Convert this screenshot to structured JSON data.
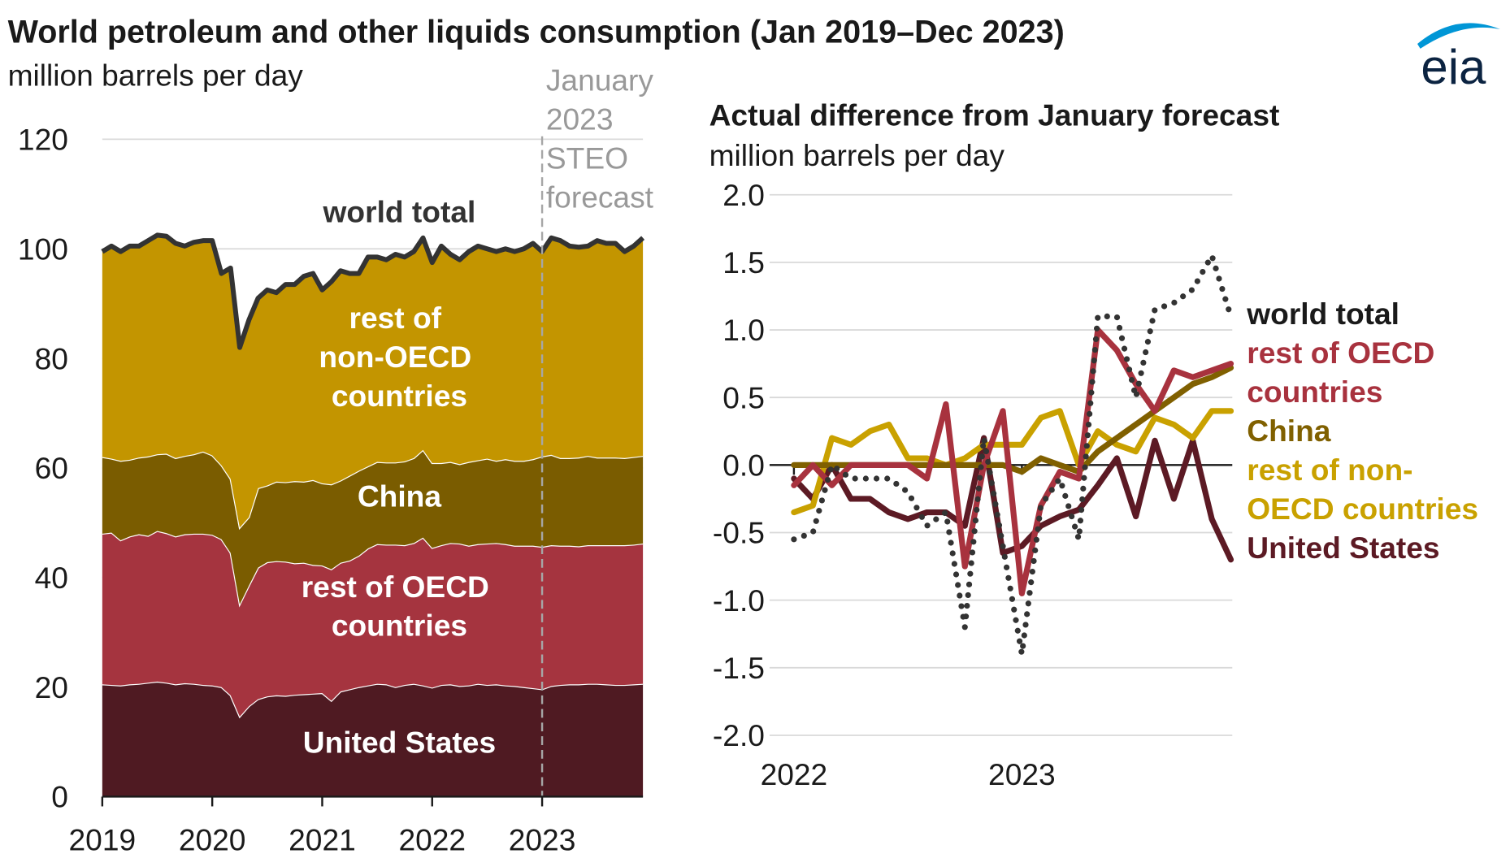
{
  "title": "World petroleum and other liquids consumption (Jan 2019–Dec 2023)",
  "subtitle": "million barrels per day",
  "logo": "eia",
  "chart_data": [
    {
      "type": "stacked_area",
      "categories": [
        "2019",
        null,
        null,
        null,
        null,
        null,
        null,
        null,
        null,
        null,
        null,
        null,
        "2020",
        null,
        null,
        null,
        null,
        null,
        null,
        null,
        null,
        null,
        null,
        null,
        "2021",
        null,
        null,
        null,
        null,
        null,
        null,
        null,
        null,
        null,
        null,
        null,
        "2022",
        null,
        null,
        null,
        null,
        null,
        null,
        null,
        null,
        null,
        null,
        null,
        "2023",
        null,
        null,
        null,
        null,
        null,
        null,
        null,
        null,
        null,
        null,
        null
      ],
      "ylim": [
        0,
        120
      ],
      "yticks": [
        0,
        20,
        40,
        60,
        80,
        100,
        120
      ],
      "grid": true,
      "series": [
        {
          "name": "United States",
          "color": "#4f1a22",
          "values": [
            20.5,
            20.4,
            20.3,
            20.5,
            20.6,
            20.8,
            21.0,
            20.8,
            20.5,
            20.7,
            20.6,
            20.4,
            20.3,
            20.0,
            18.5,
            14.6,
            16.5,
            17.8,
            18.3,
            18.5,
            18.4,
            18.6,
            18.7,
            18.8,
            18.9,
            17.5,
            19.2,
            19.6,
            20.0,
            20.3,
            20.6,
            20.5,
            20.0,
            20.4,
            20.6,
            20.3,
            19.9,
            20.4,
            20.5,
            20.2,
            20.3,
            20.6,
            20.4,
            20.5,
            20.3,
            20.2,
            20.0,
            19.8,
            19.6,
            20.2,
            20.4,
            20.5,
            20.5,
            20.6,
            20.6,
            20.5,
            20.4,
            20.4,
            20.5,
            20.6
          ]
        },
        {
          "name": "rest of OECD countries",
          "color": "#a5343f",
          "values": [
            27.5,
            27.8,
            26.5,
            27.0,
            27.3,
            26.8,
            27.5,
            27.3,
            27.0,
            27.2,
            27.4,
            27.6,
            27.5,
            27.0,
            26.0,
            20.5,
            22.0,
            24.0,
            24.5,
            24.5,
            24.5,
            24.0,
            24.0,
            23.5,
            23.3,
            24.0,
            23.5,
            23.5,
            24.0,
            25.0,
            25.5,
            25.5,
            26.0,
            25.5,
            25.7,
            27.0,
            25.5,
            25.5,
            25.8,
            26.0,
            25.5,
            25.5,
            25.8,
            25.8,
            25.8,
            25.6,
            25.8,
            26.0,
            26.0,
            25.7,
            25.4,
            25.3,
            25.2,
            25.3,
            25.3,
            25.4,
            25.5,
            25.5,
            25.5,
            25.6
          ]
        },
        {
          "name": "China",
          "color": "#7a5c00",
          "values": [
            14.0,
            13.5,
            14.5,
            14.0,
            14.0,
            14.5,
            14.0,
            14.5,
            14.3,
            14.3,
            14.5,
            15.0,
            14.5,
            13.5,
            13.5,
            14.0,
            12.5,
            14.5,
            14.0,
            14.5,
            14.5,
            15.0,
            14.8,
            15.5,
            15.0,
            15.5,
            15.0,
            15.5,
            15.5,
            15.0,
            15.0,
            15.0,
            15.0,
            15.3,
            15.5,
            16.0,
            15.5,
            15.0,
            14.8,
            14.5,
            15.3,
            15.3,
            15.5,
            15.0,
            15.5,
            15.5,
            15.5,
            15.8,
            16.5,
            16.5,
            16.0,
            16.0,
            16.2,
            16.3,
            16.0,
            16.0,
            16.0,
            15.9,
            16.0,
            16.0
          ]
        },
        {
          "name": "rest of non-OECD countries",
          "color": "#c39500",
          "values": [
            37.5,
            38.8,
            38.2,
            39.0,
            38.6,
            39.4,
            40.0,
            39.7,
            39.2,
            38.3,
            38.7,
            38.5,
            39.2,
            35.0,
            38.5,
            32.9,
            36.0,
            34.7,
            35.7,
            34.5,
            36.1,
            35.9,
            37.5,
            37.7,
            35.3,
            37.0,
            38.3,
            36.9,
            36.0,
            38.2,
            37.4,
            37.0,
            38.0,
            37.3,
            37.7,
            38.7,
            36.6,
            39.6,
            37.9,
            37.3,
            38.4,
            39.1,
            38.3,
            38.2,
            38.4,
            38.2,
            38.7,
            39.4,
            37.4,
            39.6,
            39.7,
            38.7,
            38.4,
            38.3,
            39.6,
            39.1,
            39.1,
            37.7,
            38.5,
            39.8
          ]
        }
      ],
      "total_line": {
        "name": "world total",
        "color": "#333333",
        "values": [
          99.5,
          100.5,
          99.5,
          100.5,
          100.5,
          101.5,
          102.5,
          102.3,
          101.0,
          100.5,
          101.2,
          101.5,
          101.5,
          95.5,
          96.5,
          82.0,
          87.0,
          91.0,
          92.5,
          92.0,
          93.5,
          93.5,
          95.0,
          95.5,
          92.5,
          94.0,
          96.0,
          95.5,
          95.5,
          98.5,
          98.5,
          98.0,
          99.0,
          98.5,
          99.5,
          102.0,
          97.5,
          100.5,
          99.0,
          98.0,
          99.5,
          100.5,
          100.0,
          99.5,
          100.0,
          99.5,
          100.0,
          101.0,
          99.5,
          102.0,
          101.5,
          100.5,
          100.3,
          100.5,
          101.5,
          101.0,
          101.0,
          99.5,
          100.5,
          102.0
        ]
      },
      "annotation": {
        "text": "January 2023 STEO forecast",
        "x": 48
      }
    },
    {
      "type": "line",
      "title": "Actual difference from January forecast",
      "ylabel": "million barrels per day",
      "categories": [
        "2022",
        null,
        null,
        null,
        null,
        null,
        null,
        null,
        null,
        null,
        null,
        null,
        "2023",
        null,
        null,
        null,
        null,
        null,
        null,
        null,
        null,
        null,
        null,
        null
      ],
      "ylim": [
        -2,
        2
      ],
      "yticks": [
        {
          "value": 2,
          "label": "2.0"
        },
        1.5,
        {
          "value": 1,
          "label": "1.0"
        },
        0.5,
        {
          "value": 0,
          "label": "0.0"
        },
        -0.5,
        {
          "value": -1,
          "label": "-1.0"
        },
        -1.5,
        {
          "value": -2,
          "label": "-2.0"
        }
      ],
      "grid": true,
      "series": [
        {
          "name": "world total",
          "color": "#333333",
          "dash": "dotted",
          "values": [
            -0.55,
            -0.5,
            0.0,
            -0.1,
            -0.1,
            -0.1,
            -0.2,
            -0.45,
            -0.35,
            -1.2,
            0.2,
            -0.6,
            -1.4,
            -0.3,
            -0.1,
            -0.55,
            1.1,
            1.1,
            0.5,
            1.15,
            1.2,
            1.3,
            1.55,
            1.1
          ]
        },
        {
          "name": "rest of OECD countries",
          "color": "#a8323e",
          "values": [
            -0.15,
            0.0,
            -0.15,
            0.0,
            0.0,
            0.0,
            0.0,
            -0.1,
            0.45,
            -0.75,
            0.0,
            0.4,
            -0.95,
            -0.3,
            -0.05,
            -0.1,
            1.0,
            0.85,
            0.6,
            0.4,
            0.7,
            0.65,
            0.7,
            0.75
          ]
        },
        {
          "name": "China",
          "color": "#806000",
          "values": [
            0.0,
            0.0,
            0.0,
            0.0,
            0.0,
            0.0,
            0.0,
            0.0,
            0.0,
            0.0,
            0.0,
            0.0,
            -0.05,
            0.05,
            0.0,
            -0.05,
            0.1,
            0.2,
            0.3,
            0.4,
            0.5,
            0.6,
            0.65,
            0.72
          ]
        },
        {
          "name": "rest of non-OECD countries",
          "color": "#c9a100",
          "values": [
            -0.35,
            -0.3,
            0.2,
            0.15,
            0.25,
            0.3,
            0.05,
            0.05,
            0.0,
            0.05,
            0.15,
            0.15,
            0.15,
            0.35,
            0.4,
            0.0,
            0.25,
            0.15,
            0.1,
            0.35,
            0.3,
            0.2,
            0.4,
            0.4
          ]
        },
        {
          "name": "United States",
          "color": "#5c1a24",
          "values": [
            -0.1,
            -0.25,
            0.0,
            -0.25,
            -0.25,
            -0.35,
            -0.4,
            -0.35,
            -0.35,
            -0.45,
            0.2,
            -0.65,
            -0.6,
            -0.45,
            -0.38,
            -0.33,
            -0.15,
            0.05,
            -0.38,
            0.18,
            -0.25,
            0.18,
            -0.4,
            -0.7
          ]
        }
      ]
    }
  ]
}
